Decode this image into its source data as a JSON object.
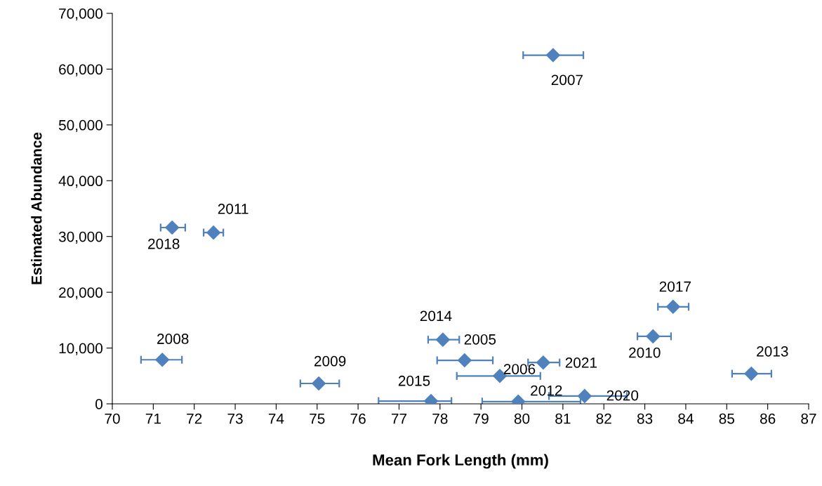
{
  "chart_data": {
    "type": "scatter",
    "xlabel": "Mean Fork Length (mm)",
    "ylabel": "Estimated Abundance",
    "x": [
      78.6,
      79.46,
      80.76,
      71.22,
      75.04,
      83.2,
      72.47,
      79.91,
      85.6,
      78.07,
      77.78,
      83.69,
      71.46,
      81.53,
      80.52
    ],
    "values": [
      7800,
      5000,
      62500,
      7900,
      3650,
      12100,
      30700,
      400,
      5400,
      11500,
      500,
      17400,
      31600,
      1400,
      7400
    ],
    "xerrors": [
      [
        77.93,
        79.29
      ],
      [
        78.41,
        80.45
      ],
      [
        80.03,
        81.5
      ],
      [
        70.7,
        71.7
      ],
      [
        74.59,
        75.54
      ],
      [
        82.82,
        83.64
      ],
      [
        72.23,
        72.71
      ],
      [
        79.03,
        81.43
      ],
      [
        85.13,
        86.09
      ],
      [
        77.71,
        78.47
      ],
      [
        76.5,
        78.28
      ],
      [
        83.32,
        84.07
      ],
      [
        71.18,
        71.78
      ],
      [
        80.66,
        82.56
      ],
      [
        80.15,
        80.92
      ]
    ],
    "color": "#4f81bd",
    "marker": "diamond",
    "grid": false,
    "legend": false,
    "xlim": [
      70,
      87
    ],
    "xticks": [
      70,
      71,
      72,
      73,
      74,
      75,
      76,
      77,
      78,
      79,
      80,
      81,
      82,
      83,
      84,
      85,
      86,
      87
    ],
    "ylim": [
      0,
      70000
    ],
    "yticks": [
      {
        "value": 0,
        "label": "0"
      },
      {
        "value": 10000,
        "label": "10,000"
      },
      {
        "value": 20000,
        "label": "20,000"
      },
      {
        "value": 30000,
        "label": "30,000"
      },
      {
        "value": 40000,
        "label": "40,000"
      },
      {
        "value": 50000,
        "label": "50,000"
      },
      {
        "value": 60000,
        "label": "60,000"
      },
      {
        "value": 70000,
        "label": "70,000"
      }
    ],
    "annotations": [
      {
        "text": "2005",
        "x": 78.6,
        "y": 7800
      },
      {
        "text": "2006",
        "x": 79.46,
        "y": 5000
      },
      {
        "text": "2007",
        "x": 80.76,
        "y": 62500
      },
      {
        "text": "2008",
        "x": 71.22,
        "y": 7900
      },
      {
        "text": "2009",
        "x": 75.04,
        "y": 3650
      },
      {
        "text": "2010",
        "x": 83.2,
        "y": 12100
      },
      {
        "text": "2011",
        "x": 72.47,
        "y": 30700
      },
      {
        "text": "2012",
        "x": 79.91,
        "y": 400
      },
      {
        "text": "2013",
        "x": 85.6,
        "y": 5400
      },
      {
        "text": "2014",
        "x": 78.07,
        "y": 11500
      },
      {
        "text": "2015",
        "x": 77.78,
        "y": 500
      },
      {
        "text": "2017",
        "x": 83.69,
        "y": 17400
      },
      {
        "text": "2018",
        "x": 71.46,
        "y": 31600
      },
      {
        "text": "2020",
        "x": 81.53,
        "y": 1400
      },
      {
        "text": "2021",
        "x": 80.52,
        "y": 7400
      }
    ]
  }
}
